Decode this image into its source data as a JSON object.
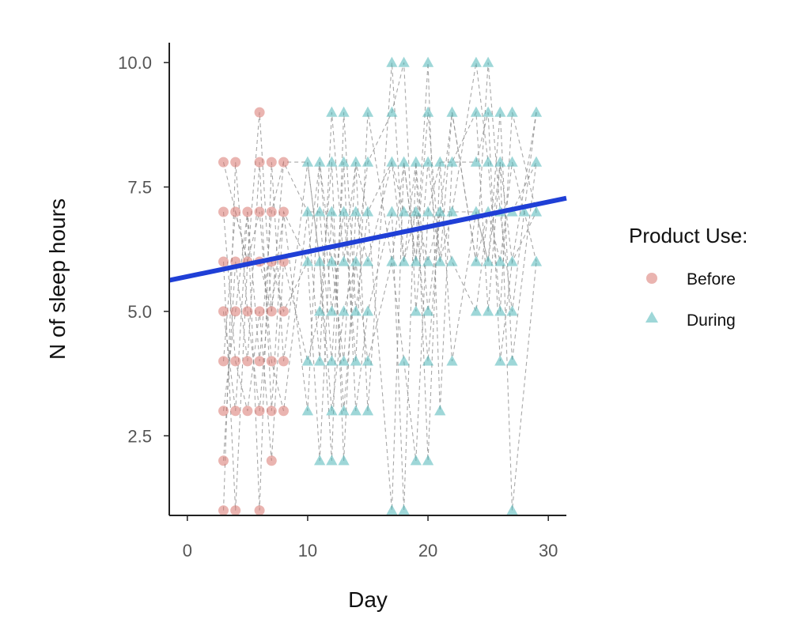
{
  "chart_data": {
    "type": "scatter",
    "xlabel": "Day",
    "ylabel": "N of sleep hours",
    "xlim": [
      -1.5,
      31.5
    ],
    "ylim": [
      0.9,
      10.4
    ],
    "x_ticks": [
      0,
      10,
      20,
      30
    ],
    "y_ticks": [
      2.5,
      5.0,
      7.5,
      10.0
    ],
    "x_tick_labels": [
      "0",
      "10",
      "20",
      "30"
    ],
    "y_tick_labels": [
      "2.5",
      "5.0",
      "7.5",
      "10.0"
    ],
    "grid": false,
    "legend": {
      "title": "Product Use:",
      "position": "right",
      "entries": [
        {
          "label": "Before",
          "shape": "circle",
          "color": "#d9776f"
        },
        {
          "label": "During",
          "shape": "triangle",
          "color": "#4fb6b8"
        }
      ]
    },
    "series": [
      {
        "name": "Before",
        "marker": "circle",
        "color": "#d9776f",
        "points": [
          [
            3,
            8
          ],
          [
            3,
            7
          ],
          [
            3,
            6
          ],
          [
            3,
            5
          ],
          [
            3,
            4
          ],
          [
            3,
            3
          ],
          [
            3,
            2
          ],
          [
            3,
            1
          ],
          [
            4,
            8
          ],
          [
            4,
            7
          ],
          [
            4,
            6
          ],
          [
            4,
            5
          ],
          [
            4,
            4
          ],
          [
            4,
            3
          ],
          [
            4,
            1
          ],
          [
            5,
            7
          ],
          [
            5,
            6
          ],
          [
            5,
            5
          ],
          [
            5,
            4
          ],
          [
            5,
            3
          ],
          [
            6,
            9
          ],
          [
            6,
            8
          ],
          [
            6,
            7
          ],
          [
            6,
            6
          ],
          [
            6,
            5
          ],
          [
            6,
            4
          ],
          [
            6,
            3
          ],
          [
            6,
            1
          ],
          [
            7,
            8
          ],
          [
            7,
            7
          ],
          [
            7,
            6
          ],
          [
            7,
            5
          ],
          [
            7,
            4
          ],
          [
            7,
            3
          ],
          [
            7,
            2
          ],
          [
            8,
            8
          ],
          [
            8,
            7
          ],
          [
            8,
            6
          ],
          [
            8,
            5
          ],
          [
            8,
            4
          ],
          [
            8,
            3
          ]
        ]
      },
      {
        "name": "During",
        "marker": "triangle",
        "color": "#4fb6b8",
        "points": [
          [
            10,
            8
          ],
          [
            10,
            7
          ],
          [
            10,
            6
          ],
          [
            10,
            4
          ],
          [
            10,
            3
          ],
          [
            11,
            8
          ],
          [
            11,
            7
          ],
          [
            11,
            6
          ],
          [
            11,
            5
          ],
          [
            11,
            4
          ],
          [
            11,
            2
          ],
          [
            12,
            9
          ],
          [
            12,
            8
          ],
          [
            12,
            7
          ],
          [
            12,
            6
          ],
          [
            12,
            5
          ],
          [
            12,
            4
          ],
          [
            12,
            3
          ],
          [
            12,
            2
          ],
          [
            13,
            9
          ],
          [
            13,
            8
          ],
          [
            13,
            7
          ],
          [
            13,
            6
          ],
          [
            13,
            5
          ],
          [
            13,
            4
          ],
          [
            13,
            3
          ],
          [
            13,
            2
          ],
          [
            14,
            8
          ],
          [
            14,
            7
          ],
          [
            14,
            6
          ],
          [
            14,
            5
          ],
          [
            14,
            4
          ],
          [
            14,
            3
          ],
          [
            15,
            9
          ],
          [
            15,
            8
          ],
          [
            15,
            7
          ],
          [
            15,
            6
          ],
          [
            15,
            5
          ],
          [
            15,
            4
          ],
          [
            15,
            3
          ],
          [
            17,
            10
          ],
          [
            17,
            9
          ],
          [
            17,
            8
          ],
          [
            17,
            7
          ],
          [
            17,
            6
          ],
          [
            17,
            1
          ],
          [
            18,
            10
          ],
          [
            18,
            8
          ],
          [
            18,
            7
          ],
          [
            18,
            6
          ],
          [
            18,
            4
          ],
          [
            18,
            1
          ],
          [
            19,
            8
          ],
          [
            19,
            7
          ],
          [
            19,
            6
          ],
          [
            19,
            5
          ],
          [
            19,
            2
          ],
          [
            20,
            10
          ],
          [
            20,
            9
          ],
          [
            20,
            8
          ],
          [
            20,
            7
          ],
          [
            20,
            6
          ],
          [
            20,
            5
          ],
          [
            20,
            4
          ],
          [
            20,
            2
          ],
          [
            21,
            8
          ],
          [
            21,
            7
          ],
          [
            21,
            6
          ],
          [
            21,
            3
          ],
          [
            22,
            9
          ],
          [
            22,
            8
          ],
          [
            22,
            7
          ],
          [
            22,
            6
          ],
          [
            22,
            4
          ],
          [
            24,
            10
          ],
          [
            24,
            9
          ],
          [
            24,
            8
          ],
          [
            24,
            7
          ],
          [
            24,
            6
          ],
          [
            24,
            5
          ],
          [
            25,
            10
          ],
          [
            25,
            9
          ],
          [
            25,
            8
          ],
          [
            25,
            7
          ],
          [
            25,
            6
          ],
          [
            25,
            5
          ],
          [
            26,
            9
          ],
          [
            26,
            8
          ],
          [
            26,
            7
          ],
          [
            26,
            6
          ],
          [
            26,
            5
          ],
          [
            26,
            4
          ],
          [
            27,
            9
          ],
          [
            27,
            8
          ],
          [
            27,
            7
          ],
          [
            27,
            6
          ],
          [
            27,
            5
          ],
          [
            27,
            4
          ],
          [
            27,
            1
          ],
          [
            28,
            7
          ],
          [
            29,
            9
          ],
          [
            29,
            8
          ],
          [
            29,
            7
          ],
          [
            29,
            6
          ]
        ]
      }
    ],
    "trend_line": {
      "type": "linear",
      "color": "#1f3fd6",
      "intercept": 5.7,
      "slope": 0.05
    },
    "connector_lines": {
      "style": "dashed",
      "color": "#8a8a8a",
      "paths": [
        [
          [
            3,
            8
          ],
          [
            4,
            7
          ],
          [
            5,
            6
          ],
          [
            6,
            9
          ],
          [
            7,
            5
          ],
          [
            8,
            8
          ],
          [
            10,
            7
          ],
          [
            11,
            4
          ],
          [
            12,
            9
          ],
          [
            13,
            6
          ],
          [
            14,
            8
          ],
          [
            15,
            3
          ],
          [
            17,
            10
          ],
          [
            18,
            6
          ],
          [
            19,
            8
          ],
          [
            20,
            5
          ],
          [
            21,
            7
          ],
          [
            22,
            9
          ],
          [
            24,
            6
          ],
          [
            25,
            10
          ],
          [
            26,
            7
          ],
          [
            27,
            5
          ],
          [
            28,
            7
          ],
          [
            29,
            9
          ]
        ],
        [
          [
            3,
            5
          ],
          [
            4,
            3
          ],
          [
            5,
            7
          ],
          [
            6,
            1
          ],
          [
            7,
            8
          ],
          [
            8,
            4
          ],
          [
            10,
            8
          ],
          [
            11,
            6
          ],
          [
            12,
            2
          ],
          [
            13,
            9
          ],
          [
            14,
            5
          ],
          [
            15,
            7
          ],
          [
            17,
            1
          ],
          [
            18,
            8
          ],
          [
            19,
            6
          ],
          [
            20,
            10
          ],
          [
            21,
            3
          ],
          [
            22,
            8
          ],
          [
            24,
            9
          ],
          [
            25,
            5
          ],
          [
            26,
            8
          ],
          [
            27,
            1
          ],
          [
            29,
            6
          ]
        ],
        [
          [
            3,
            2
          ],
          [
            4,
            6
          ],
          [
            5,
            4
          ],
          [
            6,
            8
          ],
          [
            7,
            3
          ],
          [
            8,
            7
          ],
          [
            10,
            3
          ],
          [
            11,
            8
          ],
          [
            12,
            5
          ],
          [
            13,
            7
          ],
          [
            14,
            4
          ],
          [
            15,
            9
          ],
          [
            17,
            6
          ],
          [
            18,
            4
          ],
          [
            19,
            2
          ],
          [
            20,
            7
          ],
          [
            21,
            8
          ],
          [
            22,
            4
          ],
          [
            24,
            7
          ],
          [
            25,
            6
          ],
          [
            26,
            9
          ],
          [
            27,
            4
          ],
          [
            29,
            8
          ]
        ],
        [
          [
            3,
            1
          ],
          [
            4,
            8
          ],
          [
            5,
            5
          ],
          [
            6,
            3
          ],
          [
            7,
            6
          ],
          [
            8,
            5
          ],
          [
            10,
            6
          ],
          [
            11,
            2
          ],
          [
            12,
            7
          ],
          [
            13,
            3
          ],
          [
            14,
            6
          ],
          [
            15,
            8
          ],
          [
            17,
            9
          ],
          [
            18,
            10
          ],
          [
            19,
            5
          ],
          [
            20,
            8
          ],
          [
            21,
            6
          ],
          [
            22,
            7
          ],
          [
            24,
            10
          ],
          [
            25,
            8
          ],
          [
            26,
            5
          ],
          [
            27,
            9
          ],
          [
            29,
            7
          ]
        ],
        [
          [
            3,
            7
          ],
          [
            4,
            4
          ],
          [
            5,
            3
          ],
          [
            6,
            5
          ],
          [
            7,
            2
          ],
          [
            8,
            6
          ],
          [
            10,
            4
          ],
          [
            11,
            5
          ],
          [
            12,
            8
          ],
          [
            13,
            2
          ],
          [
            14,
            7
          ],
          [
            15,
            6
          ],
          [
            17,
            8
          ],
          [
            18,
            7
          ],
          [
            19,
            7
          ],
          [
            20,
            4
          ],
          [
            21,
            7
          ],
          [
            22,
            6
          ],
          [
            24,
            5
          ],
          [
            25,
            7
          ],
          [
            26,
            6
          ],
          [
            27,
            8
          ],
          [
            29,
            6
          ]
        ],
        [
          [
            3,
            6
          ],
          [
            4,
            1
          ],
          [
            5,
            6
          ],
          [
            6,
            7
          ],
          [
            7,
            4
          ],
          [
            8,
            3
          ],
          [
            10,
            7
          ],
          [
            11,
            7
          ],
          [
            12,
            4
          ],
          [
            13,
            8
          ],
          [
            14,
            3
          ],
          [
            15,
            5
          ],
          [
            17,
            7
          ],
          [
            18,
            1
          ],
          [
            19,
            8
          ],
          [
            20,
            2
          ],
          [
            21,
            8
          ],
          [
            22,
            8
          ],
          [
            24,
            8
          ],
          [
            25,
            9
          ],
          [
            26,
            4
          ],
          [
            27,
            6
          ],
          [
            29,
            9
          ]
        ],
        [
          [
            3,
            3
          ],
          [
            4,
            5
          ],
          [
            5,
            7
          ],
          [
            6,
            4
          ],
          [
            7,
            7
          ],
          [
            8,
            8
          ],
          [
            10,
            8
          ],
          [
            11,
            6
          ],
          [
            12,
            3
          ],
          [
            13,
            5
          ],
          [
            14,
            6
          ],
          [
            15,
            4
          ],
          [
            17,
            6
          ],
          [
            18,
            8
          ],
          [
            19,
            6
          ],
          [
            20,
            9
          ],
          [
            21,
            6
          ],
          [
            22,
            9
          ],
          [
            24,
            6
          ],
          [
            25,
            7
          ],
          [
            26,
            7
          ],
          [
            27,
            7
          ],
          [
            29,
            8
          ]
        ],
        [
          [
            3,
            4
          ],
          [
            4,
            7
          ],
          [
            5,
            6
          ],
          [
            6,
            6
          ],
          [
            7,
            5
          ],
          [
            8,
            7
          ],
          [
            10,
            6
          ],
          [
            11,
            8
          ],
          [
            12,
            6
          ],
          [
            13,
            4
          ],
          [
            14,
            8
          ],
          [
            15,
            7
          ],
          [
            17,
            8
          ],
          [
            18,
            6
          ],
          [
            19,
            7
          ],
          [
            20,
            6
          ],
          [
            21,
            7
          ],
          [
            22,
            7
          ],
          [
            24,
            7
          ],
          [
            25,
            6
          ],
          [
            26,
            8
          ],
          [
            27,
            6
          ],
          [
            29,
            7
          ]
        ]
      ]
    }
  }
}
